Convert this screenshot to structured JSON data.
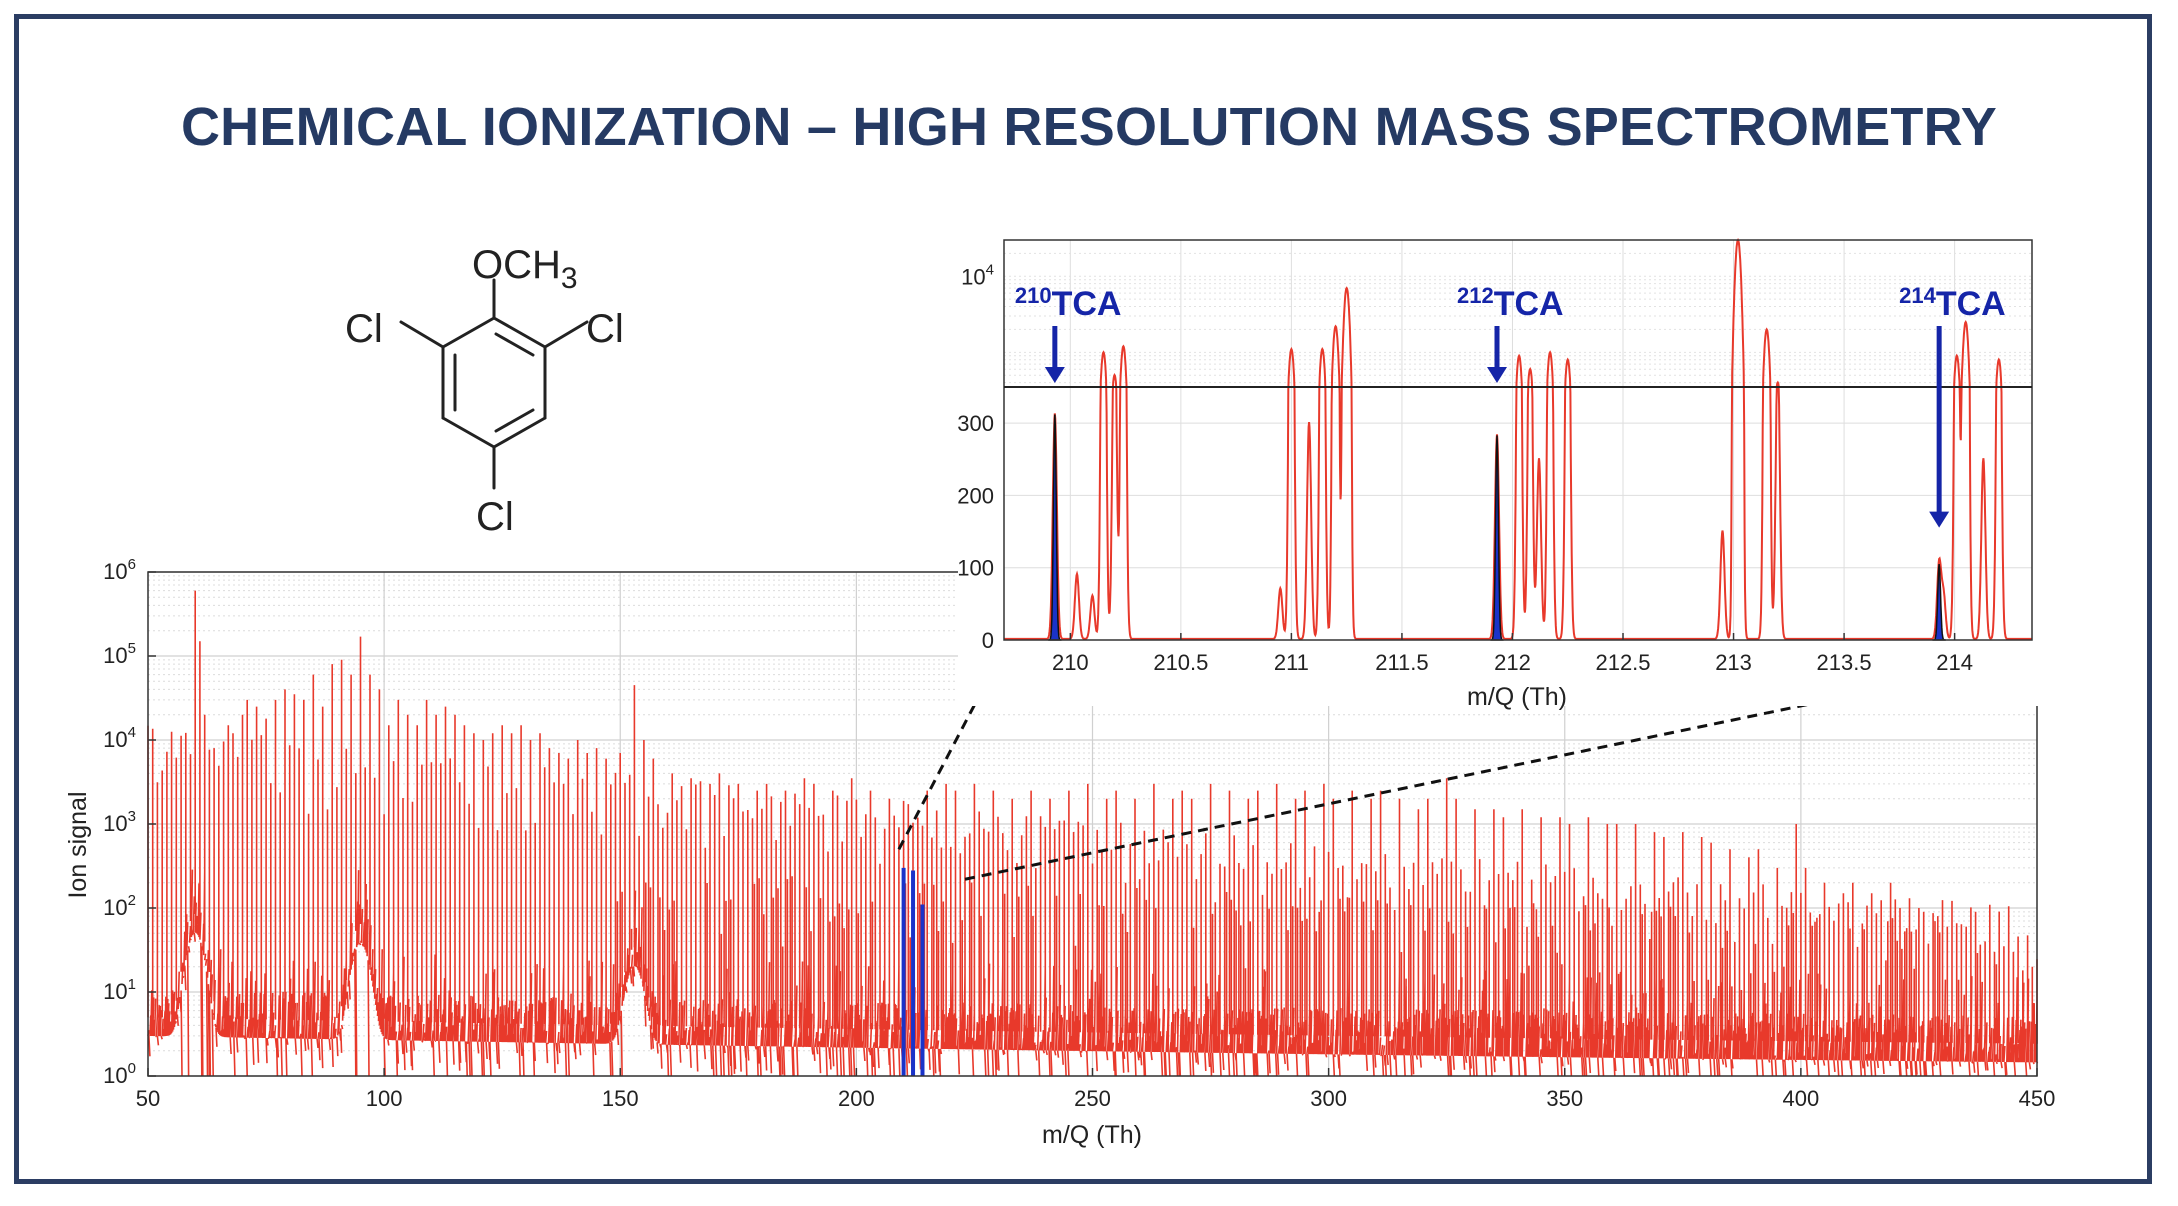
{
  "title": "CHEMICAL IONIZATION – HIGH RESOLUTION MASS SPECTROMETRY",
  "molecule": {
    "top_group": "OCH",
    "top_group_subscript": "3",
    "substituent_left": "Cl",
    "substituent_right": "Cl",
    "substituent_bottom": "Cl"
  },
  "colors": {
    "title": "#253a63",
    "border": "#2b3d63",
    "spectrum": "#e8392b",
    "highlight": "#1a33c9",
    "annotation": "#1525a8"
  },
  "chart_data": [
    {
      "id": "main",
      "type": "line",
      "xlabel": "m/Q (Th)",
      "ylabel": "Ion signal",
      "xlim": [
        50,
        450
      ],
      "ylim": [
        1,
        1000000
      ],
      "yscale": "log",
      "grid": true,
      "x_ticks": [
        "50",
        "100",
        "150",
        "200",
        "250",
        "300",
        "350",
        "400",
        "450"
      ],
      "y_ticks": [
        {
          "base": "10",
          "exp": "0"
        },
        {
          "base": "10",
          "exp": "1"
        },
        {
          "base": "10",
          "exp": "2"
        },
        {
          "base": "10",
          "exp": "3"
        },
        {
          "base": "10",
          "exp": "4"
        },
        {
          "base": "10",
          "exp": "5"
        },
        {
          "base": "10",
          "exp": "6"
        }
      ],
      "series": [
        {
          "color": "#e8392b",
          "peaks": [
            [
              60,
              600000
            ],
            [
              61,
              150000
            ],
            [
              62,
              20000
            ],
            [
              64,
              8000
            ],
            [
              67,
              15000
            ],
            [
              68,
              12000
            ],
            [
              70,
              20000
            ],
            [
              71,
              30000
            ],
            [
              73,
              25000
            ],
            [
              75,
              18000
            ],
            [
              77,
              30000
            ],
            [
              79,
              40000
            ],
            [
              81,
              35000
            ],
            [
              83,
              30000
            ],
            [
              85,
              60000
            ],
            [
              87,
              25000
            ],
            [
              89,
              80000
            ],
            [
              91,
              90000
            ],
            [
              93,
              60000
            ],
            [
              95,
              170000
            ],
            [
              97,
              60000
            ],
            [
              99,
              40000
            ],
            [
              101,
              15000
            ],
            [
              103,
              30000
            ],
            [
              105,
              20000
            ],
            [
              107,
              15000
            ],
            [
              109,
              30000
            ],
            [
              111,
              20000
            ],
            [
              113,
              25000
            ],
            [
              115,
              20000
            ],
            [
              117,
              15000
            ],
            [
              119,
              12000
            ],
            [
              121,
              10000
            ],
            [
              123,
              12000
            ],
            [
              125,
              15000
            ],
            [
              127,
              12000
            ],
            [
              129,
              15000
            ],
            [
              131,
              10000
            ],
            [
              133,
              12000
            ],
            [
              135,
              8000
            ],
            [
              137,
              7000
            ],
            [
              139,
              6000
            ],
            [
              141,
              10000
            ],
            [
              143,
              7000
            ],
            [
              145,
              8000
            ],
            [
              147,
              6000
            ],
            [
              150,
              7000
            ],
            [
              153,
              45000
            ],
            [
              155,
              10000
            ],
            [
              157,
              6000
            ],
            [
              161,
              4000
            ],
            [
              165,
              3500
            ],
            [
              169,
              3000
            ],
            [
              171,
              4000
            ],
            [
              175,
              3000
            ],
            [
              179,
              2500
            ],
            [
              181,
              3000
            ],
            [
              185,
              2500
            ],
            [
              189,
              3500
            ],
            [
              191,
              3000
            ],
            [
              195,
              2500
            ],
            [
              199,
              3500
            ],
            [
              203,
              2500
            ],
            [
              207,
              2000
            ],
            [
              215,
              2500
            ],
            [
              219,
              3000
            ],
            [
              221,
              2500
            ],
            [
              225,
              3000
            ],
            [
              229,
              2500
            ],
            [
              233,
              2000
            ],
            [
              237,
              2500
            ],
            [
              241,
              2000
            ],
            [
              245,
              2500
            ],
            [
              249,
              3000
            ],
            [
              253,
              2000
            ],
            [
              255,
              2500
            ],
            [
              259,
              2000
            ],
            [
              263,
              3000
            ],
            [
              267,
              2000
            ],
            [
              269,
              2500
            ],
            [
              271,
              2000
            ],
            [
              275,
              3000
            ],
            [
              279,
              2500
            ],
            [
              283,
              2000
            ],
            [
              285,
              2500
            ],
            [
              289,
              3000
            ],
            [
              293,
              2000
            ],
            [
              295,
              2500
            ],
            [
              299,
              3000
            ],
            [
              301,
              2000
            ],
            [
              305,
              2500
            ],
            [
              309,
              2000
            ],
            [
              311,
              2500
            ],
            [
              315,
              2000
            ],
            [
              319,
              1500
            ],
            [
              321,
              2000
            ],
            [
              325,
              3500
            ],
            [
              327,
              2000
            ],
            [
              331,
              1500
            ],
            [
              335,
              1500
            ],
            [
              337,
              1200
            ],
            [
              341,
              1500
            ],
            [
              345,
              1200
            ],
            [
              349,
              1200
            ],
            [
              351,
              1000
            ],
            [
              355,
              1200
            ],
            [
              359,
              1000
            ],
            [
              361,
              1000
            ],
            [
              365,
              1000
            ],
            [
              369,
              800
            ],
            [
              371,
              700
            ],
            [
              375,
              800
            ],
            [
              379,
              700
            ],
            [
              381,
              600
            ],
            [
              385,
              500
            ],
            [
              389,
              400
            ],
            [
              391,
              500
            ],
            [
              395,
              300
            ],
            [
              399,
              1000
            ],
            [
              401,
              300
            ],
            [
              405,
              200
            ],
            [
              409,
              150
            ],
            [
              411,
              200
            ],
            [
              415,
              150
            ],
            [
              419,
              200
            ],
            [
              421,
              100
            ],
            [
              425,
              100
            ],
            [
              429,
              80
            ],
            [
              431,
              60
            ],
            [
              435,
              60
            ],
            [
              439,
              40
            ],
            [
              441,
              30
            ],
            [
              445,
              30
            ],
            [
              449,
              20
            ]
          ],
          "baseline_humps": [
            [
              60,
              80
            ],
            [
              95,
              60
            ],
            [
              153,
              30
            ]
          ]
        },
        {
          "name": "TCA",
          "color": "#1a33c9",
          "peaks": [
            [
              210,
              300
            ],
            [
              212,
              280
            ],
            [
              214,
              110
            ]
          ]
        }
      ],
      "zoom_connector": {
        "from_x": 209,
        "to_x": 223
      }
    },
    {
      "id": "inset",
      "type": "line",
      "xlabel": "m/Q (Th)",
      "xlim": [
        209.7,
        214.35
      ],
      "x_ticks": [
        "210",
        "210.5",
        "211",
        "211.5",
        "212",
        "212.5",
        "213",
        "213.5",
        "214"
      ],
      "x_tick_values": [
        210,
        210.5,
        211,
        211.5,
        212,
        212.5,
        213,
        213.5,
        214
      ],
      "linear_panel": {
        "ylim": [
          0,
          350
        ],
        "y_ticks": [
          "0",
          "100",
          "200",
          "300"
        ],
        "y_tick_values": [
          0,
          100,
          200,
          300
        ]
      },
      "log_panel": {
        "ylim": [
          350,
          30000
        ],
        "y_tick": {
          "base": "10",
          "exp": "4"
        }
      },
      "series": [
        {
          "color": "#e8392b",
          "peaks": [
            [
              210.03,
              90
            ],
            [
              210.1,
              60
            ],
            [
              210.15,
              1000
            ],
            [
              210.2,
              500
            ],
            [
              210.24,
              1200
            ],
            [
              210.95,
              70
            ],
            [
              211.0,
              1100
            ],
            [
              211.08,
              300
            ],
            [
              211.14,
              1100
            ],
            [
              211.2,
              2200
            ],
            [
              211.25,
              7000
            ],
            [
              212.03,
              900
            ],
            [
              212.08,
              600
            ],
            [
              212.12,
              250
            ],
            [
              212.17,
              1000
            ],
            [
              212.25,
              800
            ],
            [
              212.95,
              150
            ],
            [
              213.02,
              30000
            ],
            [
              213.15,
              2000
            ],
            [
              213.2,
              400
            ],
            [
              213.95,
              60
            ],
            [
              214.01,
              900
            ],
            [
              214.05,
              2500
            ],
            [
              214.13,
              250
            ],
            [
              214.2,
              800
            ]
          ]
        },
        {
          "name": "TCA",
          "color": "#1a33c9",
          "peaks": [
            [
              209.93,
              312
            ],
            [
              211.93,
              283
            ],
            [
              213.93,
              105
            ]
          ]
        }
      ],
      "annotations": [
        {
          "mass": "210",
          "label": "TCA",
          "x": 209.93,
          "arrow_y": 350
        },
        {
          "mass": "212",
          "label": "TCA",
          "x": 211.93,
          "arrow_y": 350
        },
        {
          "mass": "214",
          "label": "TCA",
          "x": 213.93,
          "arrow_y": 150
        }
      ]
    }
  ]
}
